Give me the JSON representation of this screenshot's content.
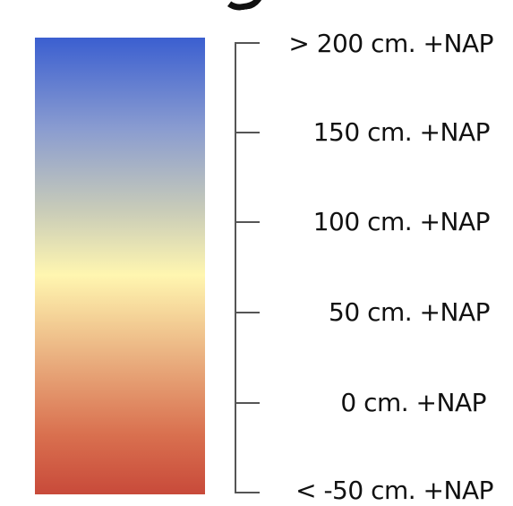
{
  "legend": {
    "labels": [
      "> 200 cm. +NAP",
      "150 cm. +NAP",
      "100 cm. +NAP",
      "50 cm. +NAP",
      "0 cm. +NAP",
      "< -50 cm. +NAP"
    ],
    "gradient_colors": {
      "top": "#3b5fd0",
      "upper": "#8a9cd0",
      "mid_upper": "#c9ccb8",
      "mid": "#fff6b0",
      "mid_lower": "#eab080",
      "lower": "#d9704f",
      "bottom": "#c84a3a"
    }
  }
}
